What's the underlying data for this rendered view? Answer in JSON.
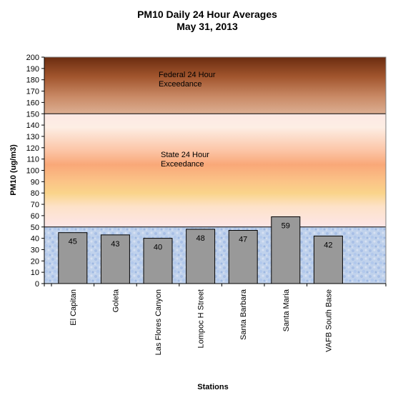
{
  "chart_data": {
    "type": "bar",
    "title_lines": [
      "PM10 Daily 24 Hour Averages",
      "May 31, 2013"
    ],
    "xlabel": "Stations",
    "ylabel": "PM10 (ug/m3)",
    "ylim": [
      0,
      200
    ],
    "ytick_step": 10,
    "yticks": [
      "0",
      "10",
      "20",
      "30",
      "40",
      "50",
      "60",
      "70",
      "80",
      "90",
      "100",
      "110",
      "120",
      "130",
      "140",
      "150",
      "160",
      "170",
      "180",
      "190",
      "200"
    ],
    "categories": [
      "El Capitan",
      "Goleta",
      "Las Flores Canyon",
      "Lompoc H Street",
      "Santa Barbara",
      "Santa Maria",
      "VAFB South Base"
    ],
    "values": [
      45,
      43,
      40,
      48,
      47,
      59,
      42
    ],
    "value_labels": [
      "45",
      "43",
      "40",
      "48",
      "47",
      "59",
      "42"
    ],
    "bands": [
      {
        "from": 0,
        "to": 50,
        "style": "blue-texture"
      },
      {
        "from": 50,
        "to": 150,
        "label_lines": [
          "State 24 Hour",
          "Exceedance"
        ]
      },
      {
        "from": 150,
        "to": 200,
        "label_lines": [
          "Federal 24 Hour",
          "Exceedance"
        ]
      }
    ],
    "colors": {
      "bar": "#999999",
      "federal_dark": "#6b2c10",
      "federal_light": "#d9a98a",
      "state_peak": "#f9a878",
      "state_light": "#fde8e4",
      "state_yellow": "#fad48a",
      "low_band": "#b8cbe8"
    },
    "grid": false,
    "legend": "none"
  }
}
